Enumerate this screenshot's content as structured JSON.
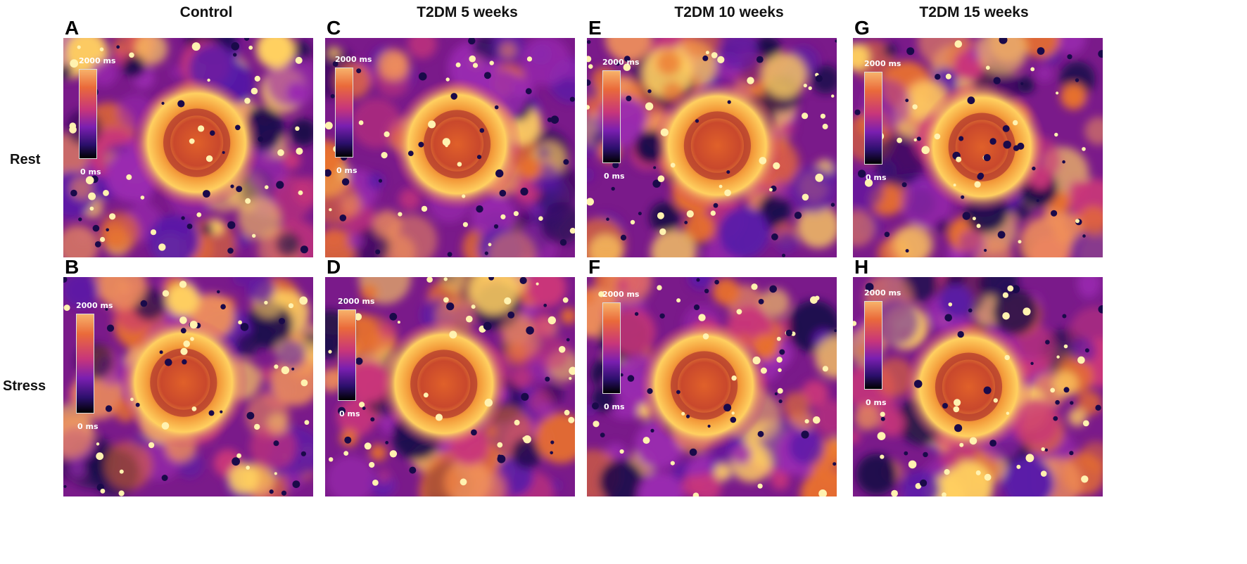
{
  "columns": [
    {
      "title": "Control"
    },
    {
      "title": "T2DM 5 weeks"
    },
    {
      "title": "T2DM 10 weeks"
    },
    {
      "title": "T2DM 15 weeks"
    }
  ],
  "rows": [
    {
      "label": "Rest"
    },
    {
      "label": "Stress"
    }
  ],
  "panels": [
    {
      "letter": "A",
      "scale_max": "2000 ms",
      "scale_min": "0 ms"
    },
    {
      "letter": "B",
      "scale_max": "2000 ms",
      "scale_min": "0 ms"
    },
    {
      "letter": "C",
      "scale_max": "2000 ms",
      "scale_min": "0 ms"
    },
    {
      "letter": "D",
      "scale_max": "2000 ms",
      "scale_min": "0 ms"
    },
    {
      "letter": "E",
      "scale_max": "2000 ms",
      "scale_min": "0 ms"
    },
    {
      "letter": "F",
      "scale_max": "2000 ms",
      "scale_min": "0 ms"
    },
    {
      "letter": "G",
      "scale_max": "2000 ms",
      "scale_min": "0 ms"
    },
    {
      "letter": "H",
      "scale_max": "2000 ms",
      "scale_min": "0 ms"
    }
  ],
  "colors": {
    "background_purple": "#7a1a8a",
    "myocardium_orange": "#e8702e",
    "bright_yellow": "#ffe27a",
    "dark_blue": "#1a0a4a"
  }
}
